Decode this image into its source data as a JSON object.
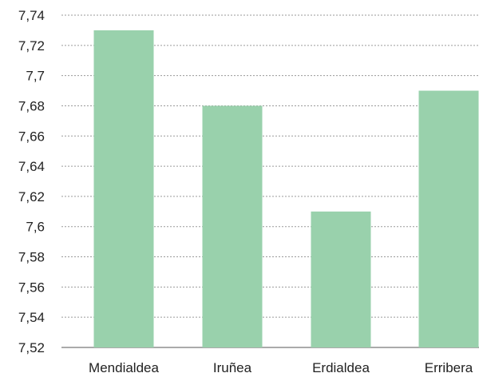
{
  "chart_data": {
    "type": "bar",
    "categories": [
      "Mendialdea",
      "Iruñea",
      "Erdialdea",
      "Erribera"
    ],
    "values": [
      7.73,
      7.68,
      7.61,
      7.69
    ],
    "ylim": [
      7.52,
      7.74
    ],
    "yticks": [
      "7,52",
      "7,54",
      "7,56",
      "7,58",
      "7,6",
      "7,62",
      "7,64",
      "7,66",
      "7,68",
      "7,7",
      "7,72",
      "7,74"
    ],
    "grid": true,
    "bar_color": "#99d1ac"
  }
}
